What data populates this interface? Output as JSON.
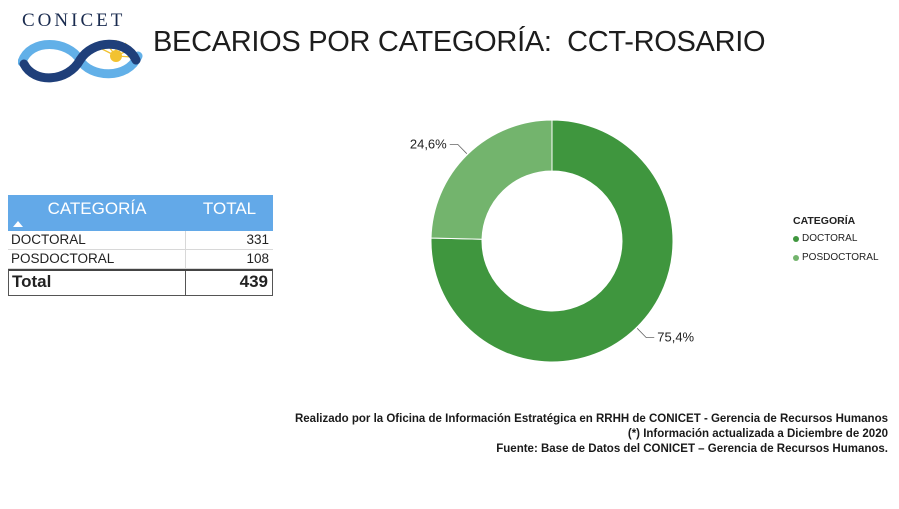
{
  "logo": {
    "text": "CONICET",
    "colors": {
      "dark": "#1f3f7a",
      "light": "#62b0e8",
      "sun": "#f2c230"
    }
  },
  "page_title": "BECARIOS POR CATEGORÍA:  CCT-ROSARIO",
  "table": {
    "header_category": "CATEGORÍA",
    "header_total": "TOTAL",
    "rows": [
      {
        "category": "DOCTORAL",
        "total": "331"
      },
      {
        "category": "POSDOCTORAL",
        "total": "108"
      }
    ],
    "total_label": "Total",
    "total_value": "439"
  },
  "chart_data": {
    "type": "pie",
    "donut": true,
    "categories": [
      "DOCTORAL",
      "POSDOCTORAL"
    ],
    "values": [
      331,
      108
    ],
    "percent_labels": [
      "75,4%",
      "24,6%"
    ],
    "colors": [
      "#3f963e",
      "#73b46d"
    ],
    "legend_title": "CATEGORÍA",
    "legend_position": "right"
  },
  "footer": {
    "line1": "Realizado por la Oficina de Información Estratégica en RRHH de CONICET - Gerencia de Recursos Humanos",
    "line2": "(*) Información actualizada a Diciembre de 2020",
    "line3": "Fuente: Base de Datos del CONICET – Gerencia de Recursos Humanos."
  }
}
